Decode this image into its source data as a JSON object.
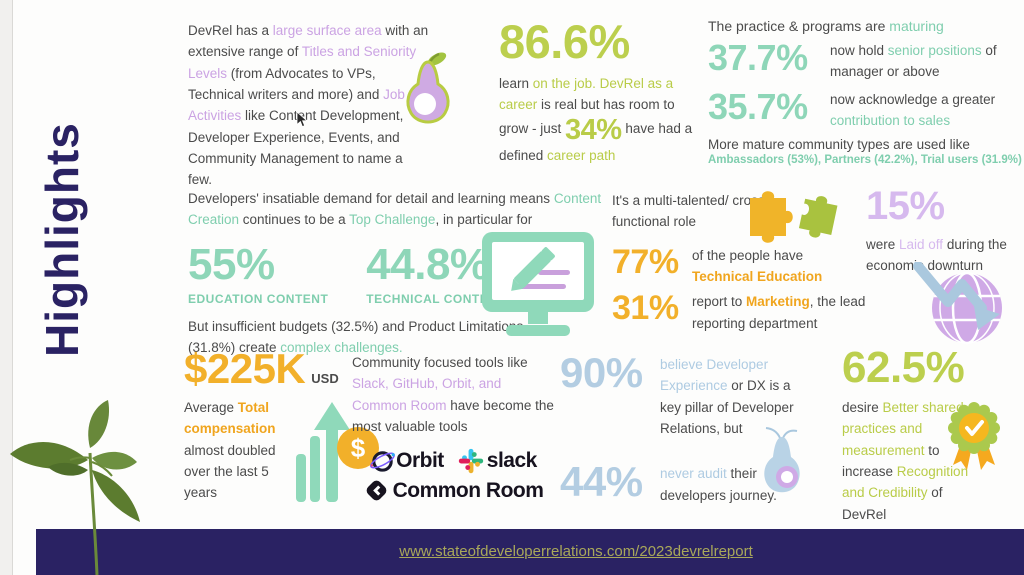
{
  "sidebar": {
    "title": "Highlights"
  },
  "footer": {
    "url": "www.stateofdeveloperrelations.com/2023devrelreport"
  },
  "colors": {
    "navy": "#2a2263",
    "lime_green": "#bccf4e",
    "teal_number": "#8ed6b8",
    "teal_text": "#7fceae",
    "yellow": "#f2b02a",
    "orange_bold": "#f0a51e",
    "purple": "#cba3e3",
    "light_purple": "#d6b9ee",
    "light_blue": "#b3cde2",
    "body_text": "#4b4b4b",
    "link_olive": "#a9a85a",
    "slack_blue": "#36c5f0",
    "slack_green": "#2eb67d",
    "slack_yellow": "#ecb22e",
    "slack_red": "#e01e5a",
    "common_room_dark": "#17131f"
  },
  "blocks": {
    "surface_area": {
      "text": [
        {
          "t": "DevRel has a "
        },
        {
          "t": "large surface area",
          "c": "purple"
        },
        {
          "t": " with an extensive range of "
        },
        {
          "t": "Titles and Seniority Levels",
          "c": "purple"
        },
        {
          "t": " (from Advocates to VPs, Technical writers and more) and "
        },
        {
          "t": "Job Activities",
          "c": "purple"
        },
        {
          "t": " like Content Development, Developer Experience, Events, and Community Management to name a few."
        }
      ]
    },
    "learn_on_job": {
      "stat": "86.6%",
      "body": [
        {
          "t": "learn "
        },
        {
          "t": "on the job. DevRel as a career",
          "c": "green"
        },
        {
          "t": " is real but has room to grow - just "
        },
        {
          "t": "34%",
          "c": "green",
          "big": true
        },
        {
          "t": " have had a defined "
        },
        {
          "t": "career path",
          "c": "green"
        }
      ]
    },
    "maturing": {
      "title": [
        {
          "t": "The practice & programs are "
        },
        {
          "t": "maturing",
          "c": "teal"
        }
      ],
      "rows": [
        {
          "stat": "37.7%",
          "desc": [
            {
              "t": "now hold "
            },
            {
              "t": "senior positions",
              "c": "teal"
            },
            {
              "t": " of manager or above"
            }
          ]
        },
        {
          "stat": "35.7%",
          "desc": [
            {
              "t": "now acknowledge a greater "
            },
            {
              "t": "contribution to sales",
              "c": "teal"
            }
          ]
        }
      ],
      "footer_plain": "More mature community types are used like",
      "footer_highlight": "Ambassadors (53%), Partners (42.2%), Trial users (31.9%)"
    },
    "content_creation": {
      "intro": [
        {
          "t": "Developers' insatiable demand for detail and learning means "
        },
        {
          "t": "Content Creation",
          "c": "teal"
        },
        {
          "t": " continues to be a "
        },
        {
          "t": "Top Challenge",
          "c": "teal"
        },
        {
          "t": ", in particular for"
        }
      ],
      "stats": [
        {
          "value": "55%",
          "label": "EDUCATION CONTENT"
        },
        {
          "value": "44.8%",
          "label": "TECHNICAL CONTENT"
        }
      ],
      "footer": [
        {
          "t": "But insufficient budgets (32.5%) and Product Limitations (31.8%) create "
        },
        {
          "t": "complex challenges.",
          "c": "teal"
        }
      ]
    },
    "cross_functional": {
      "intro": "It's a multi-talented/ cross functional role",
      "rows": [
        {
          "stat": "77%",
          "desc": [
            {
              "t": "of the people have "
            },
            {
              "t": "Technical Education",
              "c": "yellow"
            }
          ]
        },
        {
          "stat": "31%",
          "desc": [
            {
              "t": "report to "
            },
            {
              "t": "Marketing",
              "c": "yellow"
            },
            {
              "t": ", the lead reporting department"
            }
          ]
        }
      ]
    },
    "laid_off": {
      "stat": "15%",
      "desc": [
        {
          "t": "were "
        },
        {
          "t": "Laid off",
          "c": "lightpurple"
        },
        {
          "t": " during the economic downturn"
        }
      ]
    },
    "compensation": {
      "stat": "$225K",
      "unit": "USD",
      "desc": [
        {
          "t": "Average "
        },
        {
          "t": "Total compensation",
          "c": "yellow"
        },
        {
          "t": " almost doubled over the last 5 years"
        }
      ]
    },
    "tools": {
      "text": [
        {
          "t": "Community focused tools like "
        },
        {
          "t": "Slack, GitHub, Orbit, and Common Room",
          "c": "purple"
        },
        {
          "t": " have become the most valuable tools"
        }
      ],
      "logos": {
        "orbit": "Orbit",
        "slack": "slack",
        "common_room": "Common Room"
      }
    },
    "dx": {
      "rows": [
        {
          "stat": "90%",
          "desc": [
            {
              "t": "believe Developer Experience",
              "c": "lightblue"
            },
            {
              "t": " or DX is a key pillar of Developer Relations, but"
            }
          ]
        },
        {
          "stat": "44%",
          "desc": [
            {
              "t": "never audit",
              "c": "lightblue"
            },
            {
              "t": " their developers journey."
            }
          ]
        }
      ]
    },
    "recognition": {
      "stat": "62.5%",
      "desc": [
        {
          "t": "desire "
        },
        {
          "t": "Better shared practices and measurement",
          "c": "green"
        },
        {
          "t": " to increase "
        },
        {
          "t": "Recognition and Credibility",
          "c": "green"
        },
        {
          "t": " of DevRel"
        }
      ]
    }
  }
}
